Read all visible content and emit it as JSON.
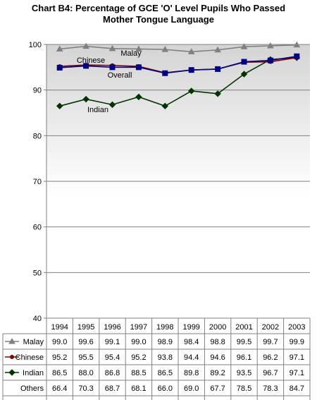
{
  "chart_data": {
    "type": "line",
    "title_line1": "Chart B4: Percentage of GCE 'O' Level Pupils Who Passed",
    "title_line2": "Mother Tongue Language",
    "categories": [
      "1994",
      "1995",
      "1996",
      "1997",
      "1998",
      "1999",
      "2000",
      "2001",
      "2002",
      "2003"
    ],
    "ylim": [
      40,
      100
    ],
    "yticks": [
      40,
      50,
      60,
      70,
      80,
      90,
      100
    ],
    "grid": true,
    "series": [
      {
        "name": "Malay",
        "values": [
          99.0,
          99.6,
          99.1,
          99.0,
          98.9,
          98.4,
          98.8,
          99.5,
          99.7,
          99.9
        ],
        "color": "#808080",
        "marker": "triangle",
        "plotted": true,
        "label": "Malay"
      },
      {
        "name": "Chinese",
        "values": [
          95.2,
          95.5,
          95.4,
          95.2,
          93.8,
          94.4,
          94.6,
          96.1,
          96.2,
          97.1
        ],
        "color": "#800000",
        "marker": "circle",
        "plotted": true,
        "label": "Chinese"
      },
      {
        "name": "Indian",
        "values": [
          86.5,
          88.0,
          86.8,
          88.5,
          86.5,
          89.8,
          89.2,
          93.5,
          96.7,
          97.1
        ],
        "color": "#003300",
        "marker": "diamond",
        "plotted": true,
        "label": "Indian"
      },
      {
        "name": "Others",
        "values": [
          66.4,
          70.3,
          68.7,
          68.1,
          66.0,
          69.0,
          67.7,
          78.5,
          78.3,
          84.7
        ],
        "color": "#000000",
        "marker": "none",
        "plotted": false,
        "label": ""
      },
      {
        "name": "Overall",
        "values": [
          94.9,
          95.3,
          95.0,
          95.0,
          93.7,
          94.4,
          94.6,
          96.2,
          96.5,
          97.4
        ],
        "color": "#000080",
        "marker": "square",
        "plotted": true,
        "label": "Overall"
      }
    ]
  }
}
